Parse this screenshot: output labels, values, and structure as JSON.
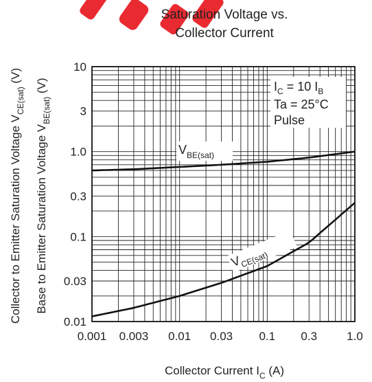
{
  "chart_data": {
    "type": "line",
    "title_line1": "Saturation Voltage vs.",
    "title_line2": "Collector Current",
    "xlabel": {
      "main": "Collector Current  I",
      "sub": "C",
      "tail": "  (A)"
    },
    "ylabel_line1": {
      "main": "Collector to Emitter Saturation Voltage  V",
      "sub": "CE(sat)",
      "tail": "  (V)"
    },
    "ylabel_line2": {
      "main": "Base to Emitter Saturation Voltage  V",
      "sub": "BE(sat)",
      "tail": "  (V)"
    },
    "x_scale": "log",
    "y_scale": "log",
    "xlim": [
      0.001,
      1.0
    ],
    "ylim": [
      0.01,
      10
    ],
    "grid": true,
    "x_ticks": [
      0.001,
      0.003,
      0.01,
      0.03,
      0.1,
      0.3,
      1.0
    ],
    "x_tick_labels": [
      "0.001",
      "0.003",
      "0.01",
      "0.03",
      "0.1",
      "0.3",
      "1.0"
    ],
    "y_ticks": [
      0.01,
      0.03,
      0.1,
      0.3,
      1.0,
      3,
      10
    ],
    "y_tick_labels": [
      "0.01",
      "0.03",
      "0.1",
      "0.3",
      "1.0",
      "3",
      "10"
    ],
    "conditions": [
      {
        "main": "I",
        "sub": "C",
        "tail": " = 10 I",
        "sub2": "B"
      },
      {
        "main": "Ta = 25°C"
      },
      {
        "main": "Pulse"
      }
    ],
    "series": [
      {
        "label_main": "V",
        "label_sub": "BE(sat)",
        "x": [
          0.001,
          0.003,
          0.01,
          0.03,
          0.1,
          0.3,
          1.0
        ],
        "y": [
          0.6,
          0.62,
          0.66,
          0.7,
          0.76,
          0.85,
          1.0
        ]
      },
      {
        "label_main": "V",
        "label_sub": "CE(sat)",
        "x": [
          0.001,
          0.003,
          0.01,
          0.03,
          0.1,
          0.3,
          1.0
        ],
        "y": [
          0.0115,
          0.0145,
          0.02,
          0.0285,
          0.045,
          0.085,
          0.25
        ]
      }
    ]
  }
}
